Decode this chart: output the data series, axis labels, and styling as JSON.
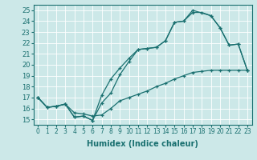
{
  "xlabel": "Humidex (Indice chaleur)",
  "background_color": "#cce8e8",
  "line_color": "#1a7070",
  "xlim": [
    -0.5,
    23.5
  ],
  "ylim": [
    14.5,
    25.5
  ],
  "xticks": [
    0,
    1,
    2,
    3,
    4,
    5,
    6,
    7,
    8,
    9,
    10,
    11,
    12,
    13,
    14,
    15,
    16,
    17,
    18,
    19,
    20,
    21,
    22,
    23
  ],
  "yticks": [
    15,
    16,
    17,
    18,
    19,
    20,
    21,
    22,
    23,
    24,
    25
  ],
  "line1_x": [
    0,
    1,
    2,
    3,
    4,
    5,
    6,
    7,
    8,
    9,
    10,
    11,
    12,
    13,
    14,
    15,
    16,
    17,
    19,
    20,
    21,
    22,
    23
  ],
  "line1_y": [
    17.0,
    16.1,
    16.2,
    16.4,
    15.2,
    15.3,
    14.9,
    16.5,
    17.4,
    19.1,
    20.3,
    21.4,
    21.5,
    21.6,
    22.2,
    23.9,
    24.0,
    25.0,
    24.5,
    23.4,
    21.8,
    21.9,
    19.5
  ],
  "line2_x": [
    0,
    1,
    2,
    3,
    4,
    5,
    6,
    7,
    8,
    9,
    10,
    11,
    12,
    13,
    14,
    15,
    16,
    17,
    18,
    19,
    20,
    21,
    22,
    23
  ],
  "line2_y": [
    17.0,
    16.1,
    16.2,
    16.4,
    15.2,
    15.3,
    14.9,
    17.2,
    18.7,
    19.7,
    20.6,
    21.4,
    21.5,
    21.6,
    22.2,
    23.9,
    24.0,
    24.8,
    24.8,
    24.5,
    23.4,
    21.8,
    21.9,
    19.5
  ],
  "line3_x": [
    0,
    1,
    2,
    3,
    4,
    5,
    6,
    7,
    8,
    9,
    10,
    11,
    12,
    13,
    14,
    15,
    16,
    17,
    18,
    19,
    20,
    21,
    22,
    23
  ],
  "line3_y": [
    17.0,
    16.1,
    16.2,
    16.4,
    15.6,
    15.5,
    15.3,
    15.4,
    16.0,
    16.7,
    17.0,
    17.3,
    17.6,
    18.0,
    18.3,
    18.7,
    19.0,
    19.3,
    19.4,
    19.5,
    19.5,
    19.5,
    19.5,
    19.5
  ]
}
